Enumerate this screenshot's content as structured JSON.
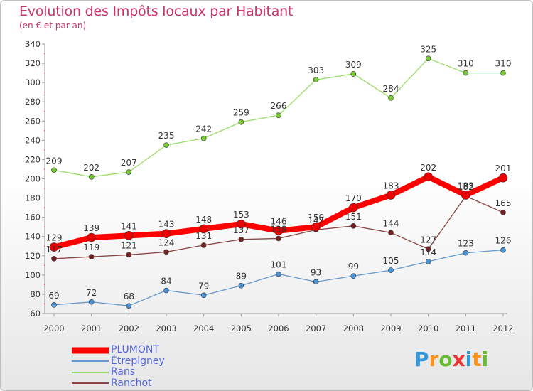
{
  "title": "Evolution des Impôts locaux par Habitant",
  "subtitle": "(en € et par an)",
  "chart_data": {
    "type": "line",
    "x": [
      "2000",
      "2001",
      "2002",
      "2003",
      "2004",
      "2005",
      "2006",
      "2007",
      "2008",
      "2009",
      "2010",
      "2011",
      "2012"
    ],
    "ylim": [
      60,
      340
    ],
    "yticks": [
      60,
      80,
      100,
      120,
      140,
      160,
      180,
      200,
      220,
      240,
      260,
      280,
      300,
      320,
      340
    ],
    "grid": false,
    "legend_position": "bottom-left",
    "series": [
      {
        "name": "PLUMONT",
        "color": "#ff0000",
        "marker": "#ee0000",
        "width": 8,
        "r": 6,
        "values": [
          129,
          139,
          141,
          143,
          148,
          153,
          146,
          150,
          170,
          183,
          202,
          183,
          201
        ]
      },
      {
        "name": "Étrepigney",
        "color": "#6699cc",
        "marker": "#4d94d6",
        "width": 1.3,
        "r": 3.5,
        "values": [
          69,
          72,
          68,
          84,
          79,
          89,
          101,
          93,
          99,
          105,
          114,
          123,
          126
        ]
      },
      {
        "name": "Rans",
        "color": "#99dd66",
        "marker": "#77cc33",
        "width": 1.3,
        "r": 3.5,
        "values": [
          209,
          202,
          207,
          235,
          242,
          259,
          266,
          303,
          309,
          284,
          325,
          310,
          310
        ]
      },
      {
        "name": "Ranchot",
        "color": "#884444",
        "marker": "#772222",
        "width": 1.3,
        "r": 3.5,
        "values": [
          117,
          119,
          121,
          124,
          131,
          137,
          138,
          147,
          151,
          144,
          127,
          182,
          165
        ]
      }
    ]
  },
  "logo": {
    "letters": [
      "P",
      "r",
      "o",
      "x",
      "i",
      "t",
      "i"
    ],
    "colors": [
      "#3399dd",
      "#f7931e",
      "#66bb33",
      "#ee3333",
      "#3399dd",
      "#f7931e",
      "#66bb33"
    ]
  }
}
